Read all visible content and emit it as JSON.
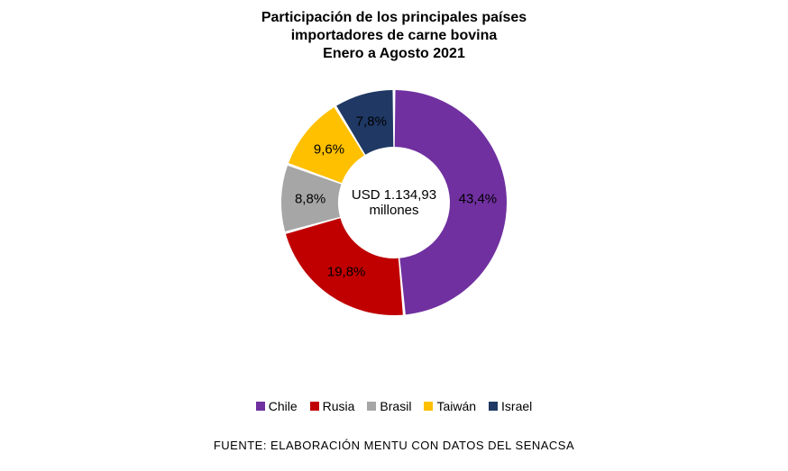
{
  "chart": {
    "type": "donut",
    "title_lines": [
      "Participación de los principales países",
      "importadores de carne bovina",
      "Enero a Agosto 2021"
    ],
    "title_fontsize": 16,
    "title_weight": "bold",
    "title_color": "#000000",
    "background_color": "#ffffff",
    "center_label_line1": "USD 1.134,93",
    "center_label_line2": "millones",
    "center_fontsize": 15,
    "center_color": "#000000",
    "outer_radius": 125,
    "inner_radius": 62,
    "slice_gap_deg": 1.4,
    "label_radius": 93,
    "label_fontsize": 15,
    "label_color": "#000000",
    "slices": [
      {
        "name": "Chile",
        "value": 43.4,
        "label": "43,4%",
        "color": "#7030a0"
      },
      {
        "name": "Rusia",
        "value": 19.8,
        "label": "19,8%",
        "color": "#c00000"
      },
      {
        "name": "Brasil",
        "value": 8.8,
        "label": "8,8%",
        "color": "#a6a6a6"
      },
      {
        "name": "Taiwán",
        "value": 9.6,
        "label": "9,6%",
        "color": "#ffc000"
      },
      {
        "name": "Israel",
        "value": 7.8,
        "label": "7,8%",
        "color": "#1f3864"
      }
    ],
    "legend_fontsize": 14,
    "legend_marker_size": 10,
    "legend_text_color": "#000000",
    "source_text": "FUENTE: ELABORACIÓN MENTU CON DATOS DEL SENACSA",
    "source_fontsize": 13,
    "source_color": "#000000"
  }
}
